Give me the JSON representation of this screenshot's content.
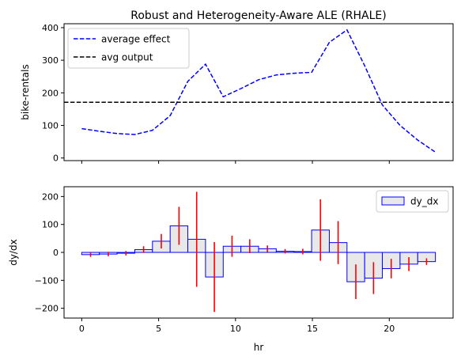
{
  "chart_data": [
    {
      "type": "line",
      "title": "Robust and Heterogeneity-Aware ALE (RHALE)",
      "xlabel": "",
      "ylabel": "bike-rentals",
      "xlim": [
        -1.15,
        24.15
      ],
      "ylim": [
        -8,
        412
      ],
      "xticks": [
        0,
        5,
        10,
        15,
        20
      ],
      "xtick_labels_visible": false,
      "yticks": [
        0,
        100,
        200,
        300,
        400
      ],
      "grid": false,
      "legend": "top-left",
      "series": [
        {
          "name": "average effect",
          "color": "#0000ff",
          "style": "dashed",
          "x": [
            0,
            1.15,
            2.3,
            3.45,
            4.6,
            5.75,
            6.9,
            8.05,
            9.2,
            10.35,
            11.5,
            12.65,
            13.8,
            14.95,
            16.1,
            17.25,
            18.4,
            19.55,
            20.7,
            21.85,
            23
          ],
          "y": [
            90,
            82,
            75,
            72,
            85,
            130,
            235,
            288,
            188,
            213,
            240,
            255,
            260,
            263,
            355,
            393,
            283,
            163,
            100,
            55,
            18
          ]
        },
        {
          "name": "avg output",
          "color": "#000000",
          "style": "dashed",
          "y_constant": 171
        }
      ]
    },
    {
      "type": "bar",
      "title": "",
      "xlabel": "hr",
      "ylabel": "dy/dx",
      "xlim": [
        -1.15,
        24.15
      ],
      "ylim": [
        -235,
        235
      ],
      "xticks": [
        0,
        5,
        10,
        15,
        20
      ],
      "yticks": [
        -200,
        -100,
        0,
        100,
        200
      ],
      "grid": false,
      "legend": "top-right",
      "series": [
        {
          "name": "dy_dx",
          "bar_fill": "#e8e8e8",
          "bar_edge": "#0000ff",
          "errorbar_color": "#ff0000",
          "bin_edges": [
            0,
            1.15,
            2.3,
            3.45,
            4.6,
            5.75,
            6.9,
            8.05,
            9.2,
            10.35,
            11.5,
            12.65,
            13.8,
            14.95,
            16.1,
            17.25,
            18.4,
            19.55,
            20.7,
            21.85,
            23
          ],
          "values": [
            -8,
            -6,
            -3,
            10,
            40,
            95,
            47,
            -88,
            22,
            22,
            13,
            4,
            3,
            80,
            35,
            -105,
            -92,
            -58,
            -42,
            -33
          ],
          "errors": [
            8,
            8,
            8,
            12,
            26,
            68,
            170,
            125,
            38,
            25,
            12,
            8,
            10,
            110,
            77,
            62,
            57,
            35,
            25,
            12
          ]
        }
      ]
    }
  ]
}
